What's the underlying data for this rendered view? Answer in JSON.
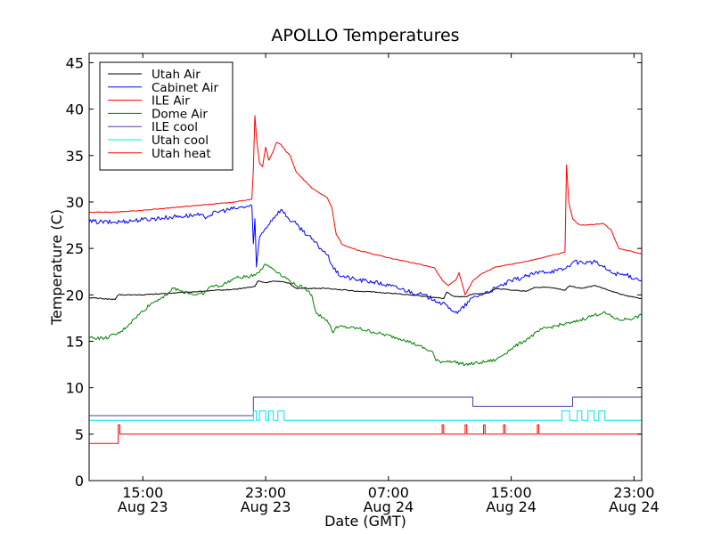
{
  "chart_data": {
    "type": "line",
    "title": "APOLLO Temperatures",
    "xlabel": "Date (GMT)",
    "ylabel": "Temperature (C)",
    "xlim": [
      11.5,
      47.5
    ],
    "ylim": [
      0,
      46
    ],
    "x_unit": "hours since Aug 23 00:00 GMT",
    "yticks": [
      0,
      5,
      10,
      15,
      20,
      25,
      30,
      35,
      40,
      45
    ],
    "xticks": [
      {
        "x": 15,
        "label": [
          "15:00",
          "Aug 23"
        ]
      },
      {
        "x": 23,
        "label": [
          "23:00",
          "Aug 23"
        ]
      },
      {
        "x": 31,
        "label": [
          "07:00",
          "Aug 24"
        ]
      },
      {
        "x": 39,
        "label": [
          "15:00",
          "Aug 24"
        ]
      },
      {
        "x": 47,
        "label": [
          "23:00",
          "Aug 24"
        ]
      }
    ],
    "grid": false,
    "legend_position": "top-left",
    "series": [
      {
        "name": "Utah Air",
        "color": "#000000",
        "points": [
          [
            11.5,
            19.7
          ],
          [
            13.2,
            19.5
          ],
          [
            13.4,
            20.0
          ],
          [
            15,
            20.0
          ],
          [
            17,
            20.2
          ],
          [
            19,
            20.4
          ],
          [
            21,
            20.6
          ],
          [
            22.3,
            20.9
          ],
          [
            22.5,
            21.5
          ],
          [
            23,
            21.3
          ],
          [
            23.5,
            21.5
          ],
          [
            24.5,
            21.3
          ],
          [
            25,
            20.7
          ],
          [
            27,
            20.7
          ],
          [
            29,
            20.4
          ],
          [
            31,
            20.2
          ],
          [
            33,
            19.9
          ],
          [
            34.6,
            19.6
          ],
          [
            34.8,
            20.3
          ],
          [
            35.3,
            19.8
          ],
          [
            36,
            19.8
          ],
          [
            36.5,
            20.1
          ],
          [
            37.5,
            20.2
          ],
          [
            38,
            20.7
          ],
          [
            39,
            20.5
          ],
          [
            40,
            20.4
          ],
          [
            40.5,
            20.8
          ],
          [
            41.5,
            20.8
          ],
          [
            42.5,
            20.5
          ],
          [
            42.8,
            21.0
          ],
          [
            43.5,
            20.7
          ],
          [
            44.5,
            21.0
          ],
          [
            45.5,
            20.4
          ],
          [
            46.5,
            19.9
          ],
          [
            47.5,
            19.6
          ]
        ]
      },
      {
        "name": "Cabinet Air",
        "color": "#0000ff",
        "points": [
          [
            11.5,
            27.9
          ],
          [
            13,
            27.8
          ],
          [
            15,
            28.1
          ],
          [
            17,
            28.4
          ],
          [
            18.5,
            28.6
          ],
          [
            19,
            28.4
          ],
          [
            20,
            29.0
          ],
          [
            21,
            29.3
          ],
          [
            22.1,
            29.6
          ],
          [
            22.2,
            25.5
          ],
          [
            22.3,
            28.2
          ],
          [
            22.4,
            23.0
          ],
          [
            22.6,
            26.2
          ],
          [
            23.0,
            27.2
          ],
          [
            23.5,
            28.3
          ],
          [
            24,
            29.2
          ],
          [
            24.5,
            28.2
          ],
          [
            25,
            27.6
          ],
          [
            26,
            26.0
          ],
          [
            27,
            24.3
          ],
          [
            27.6,
            22.4
          ],
          [
            28,
            22.0
          ],
          [
            29,
            21.6
          ],
          [
            30,
            21.4
          ],
          [
            31,
            21.0
          ],
          [
            33,
            20.1
          ],
          [
            34,
            19.5
          ],
          [
            35,
            18.6
          ],
          [
            35.5,
            18.0
          ],
          [
            36.5,
            19.7
          ],
          [
            37,
            20.0
          ],
          [
            38,
            20.7
          ],
          [
            39,
            21.5
          ],
          [
            40,
            22.0
          ],
          [
            41,
            22.5
          ],
          [
            42,
            22.6
          ],
          [
            42.5,
            22.8
          ],
          [
            43,
            23.5
          ],
          [
            44,
            23.5
          ],
          [
            44.5,
            23.5
          ],
          [
            45,
            23.0
          ],
          [
            45.5,
            22.4
          ],
          [
            46.5,
            22.1
          ],
          [
            47.5,
            21.6
          ]
        ]
      },
      {
        "name": "ILE Air",
        "color": "#ff0000",
        "points": [
          [
            11.5,
            28.9
          ],
          [
            13,
            28.9
          ],
          [
            15,
            29.1
          ],
          [
            17,
            29.4
          ],
          [
            19,
            29.7
          ],
          [
            21,
            30.0
          ],
          [
            22.1,
            30.3
          ],
          [
            22.2,
            33.5
          ],
          [
            22.3,
            39.3
          ],
          [
            22.4,
            37.0
          ],
          [
            22.6,
            34.2
          ],
          [
            22.8,
            33.8
          ],
          [
            23.0,
            35.9
          ],
          [
            23.2,
            34.5
          ],
          [
            23.5,
            35.5
          ],
          [
            23.7,
            36.4
          ],
          [
            24,
            36.2
          ],
          [
            24.3,
            35.5
          ],
          [
            24.6,
            35.0
          ],
          [
            25,
            33.2
          ],
          [
            26,
            31.5
          ],
          [
            27,
            30.5
          ],
          [
            27.3,
            29.5
          ],
          [
            27.6,
            26.5
          ],
          [
            28,
            25.4
          ],
          [
            29,
            24.8
          ],
          [
            31,
            24.0
          ],
          [
            33,
            23.3
          ],
          [
            34,
            22.9
          ],
          [
            34.5,
            21.6
          ],
          [
            34.9,
            21.0
          ],
          [
            35.4,
            21.6
          ],
          [
            35.6,
            22.4
          ],
          [
            36,
            20.0
          ],
          [
            36.5,
            21.5
          ],
          [
            37,
            22.2
          ],
          [
            38,
            23.0
          ],
          [
            40,
            23.6
          ],
          [
            41.5,
            24.2
          ],
          [
            42.5,
            24.6
          ],
          [
            42.6,
            34.0
          ],
          [
            42.75,
            30.0
          ],
          [
            43,
            28.2
          ],
          [
            43.3,
            27.7
          ],
          [
            43.5,
            27.5
          ],
          [
            44.5,
            27.6
          ],
          [
            45,
            27.7
          ],
          [
            45.5,
            27.0
          ],
          [
            46,
            25.0
          ],
          [
            47.5,
            24.4
          ]
        ]
      },
      {
        "name": "Dome Air",
        "color": "#008000",
        "points": [
          [
            11.5,
            15.4
          ],
          [
            12.5,
            15.3
          ],
          [
            13.5,
            15.9
          ],
          [
            14.5,
            17.5
          ],
          [
            15.5,
            19.0
          ],
          [
            16.5,
            20.0
          ],
          [
            17,
            20.7
          ],
          [
            17.5,
            20.4
          ],
          [
            18.5,
            20.0
          ],
          [
            19,
            20.2
          ],
          [
            19.5,
            21.0
          ],
          [
            20,
            20.9
          ],
          [
            21,
            21.8
          ],
          [
            22,
            22.0
          ],
          [
            22.5,
            22.4
          ],
          [
            23,
            23.3
          ],
          [
            23.5,
            22.8
          ],
          [
            24.5,
            21.6
          ],
          [
            25,
            21.0
          ],
          [
            25.5,
            20.8
          ],
          [
            26,
            20.0
          ],
          [
            26.3,
            18.0
          ],
          [
            27,
            17.3
          ],
          [
            27.4,
            15.9
          ],
          [
            27.6,
            16.6
          ],
          [
            29,
            16.4
          ],
          [
            30,
            16.0
          ],
          [
            32,
            15.2
          ],
          [
            33,
            14.5
          ],
          [
            33.9,
            13.8
          ],
          [
            34.1,
            12.9
          ],
          [
            34.5,
            12.8
          ],
          [
            35,
            12.9
          ],
          [
            36,
            12.5
          ],
          [
            37,
            12.7
          ],
          [
            38,
            13.0
          ],
          [
            39,
            14.2
          ],
          [
            40,
            15.2
          ],
          [
            41,
            16.3
          ],
          [
            42,
            16.7
          ],
          [
            43,
            17.0
          ],
          [
            44,
            17.6
          ],
          [
            45,
            18.1
          ],
          [
            46,
            17.3
          ],
          [
            47,
            17.5
          ],
          [
            47.5,
            17.8
          ]
        ]
      },
      {
        "name": "ILE cool",
        "color": "#4b3ba8",
        "points": [
          [
            11.5,
            7.0
          ],
          [
            22.2,
            7.0
          ],
          [
            22.2,
            9.0
          ],
          [
            36.5,
            9.0
          ],
          [
            36.5,
            8.0
          ],
          [
            43.0,
            8.0
          ],
          [
            43.0,
            9.0
          ],
          [
            47.5,
            9.0
          ]
        ]
      },
      {
        "name": "Utah cool",
        "color": "#00e5e5",
        "points": [
          [
            11.5,
            6.5
          ],
          [
            22.2,
            6.5
          ],
          [
            22.2,
            7.5
          ],
          [
            22.4,
            7.5
          ],
          [
            22.4,
            6.5
          ],
          [
            22.6,
            6.5
          ],
          [
            22.6,
            7.5
          ],
          [
            23.0,
            7.5
          ],
          [
            23.0,
            6.5
          ],
          [
            23.2,
            6.5
          ],
          [
            23.2,
            7.5
          ],
          [
            23.5,
            7.5
          ],
          [
            23.5,
            6.5
          ],
          [
            23.8,
            6.5
          ],
          [
            23.8,
            7.5
          ],
          [
            24.2,
            7.5
          ],
          [
            24.2,
            6.5
          ],
          [
            42.3,
            6.5
          ],
          [
            42.3,
            7.5
          ],
          [
            42.8,
            7.5
          ],
          [
            42.8,
            6.5
          ],
          [
            43.3,
            6.5
          ],
          [
            43.3,
            7.5
          ],
          [
            43.6,
            7.5
          ],
          [
            43.6,
            6.5
          ],
          [
            44.0,
            6.5
          ],
          [
            44.0,
            7.5
          ],
          [
            44.4,
            7.5
          ],
          [
            44.4,
            6.5
          ],
          [
            44.7,
            6.5
          ],
          [
            44.7,
            7.5
          ],
          [
            45.1,
            7.5
          ],
          [
            45.1,
            6.5
          ],
          [
            47.5,
            6.5
          ]
        ]
      },
      {
        "name": "Utah heat",
        "color": "#ff0000",
        "points": [
          [
            11.5,
            4.0
          ],
          [
            13.4,
            4.0
          ],
          [
            13.4,
            6.0
          ],
          [
            13.5,
            6.0
          ],
          [
            13.5,
            5.0
          ],
          [
            34.5,
            5.0
          ],
          [
            34.5,
            6.0
          ],
          [
            34.6,
            6.0
          ],
          [
            34.6,
            5.0
          ],
          [
            36.0,
            5.0
          ],
          [
            36.0,
            6.0
          ],
          [
            36.1,
            6.0
          ],
          [
            36.1,
            5.0
          ],
          [
            37.2,
            5.0
          ],
          [
            37.2,
            6.0
          ],
          [
            37.3,
            6.0
          ],
          [
            37.3,
            5.0
          ],
          [
            38.5,
            5.0
          ],
          [
            38.5,
            6.0
          ],
          [
            38.6,
            6.0
          ],
          [
            38.6,
            5.0
          ],
          [
            40.7,
            5.0
          ],
          [
            40.7,
            6.0
          ],
          [
            40.8,
            6.0
          ],
          [
            40.8,
            5.0
          ],
          [
            47.5,
            5.0
          ]
        ]
      }
    ]
  }
}
